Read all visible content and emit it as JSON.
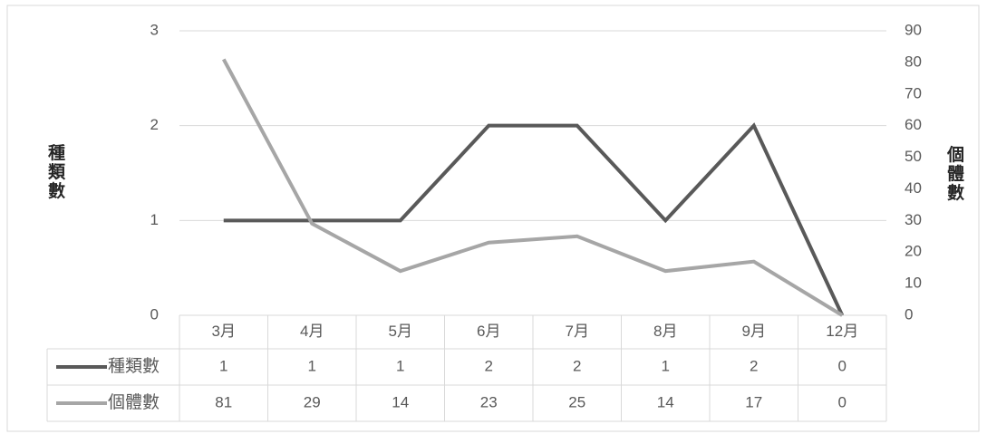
{
  "chart_data": {
    "type": "line",
    "y_label": "種類數",
    "y2_label": "個體數",
    "categories": [
      "3月",
      "4月",
      "5月",
      "6月",
      "7月",
      "8月",
      "9月",
      "12月"
    ],
    "series": [
      {
        "name": "種類數",
        "color": "#595959",
        "values": [
          1,
          1,
          1,
          2,
          2,
          1,
          2,
          0
        ]
      },
      {
        "name": "個體數",
        "color": "#a6a6a6",
        "axis": "y2",
        "values": [
          81,
          29,
          14,
          23,
          25,
          14,
          17,
          0
        ]
      }
    ],
    "ylim": [
      0,
      3
    ],
    "yticks": [
      0,
      1,
      2,
      3
    ],
    "y2lim": [
      0,
      90
    ],
    "y2ticks": [
      0,
      10,
      20,
      30,
      40,
      50,
      60,
      70,
      80,
      90
    ],
    "grid": true,
    "data_table": true
  }
}
